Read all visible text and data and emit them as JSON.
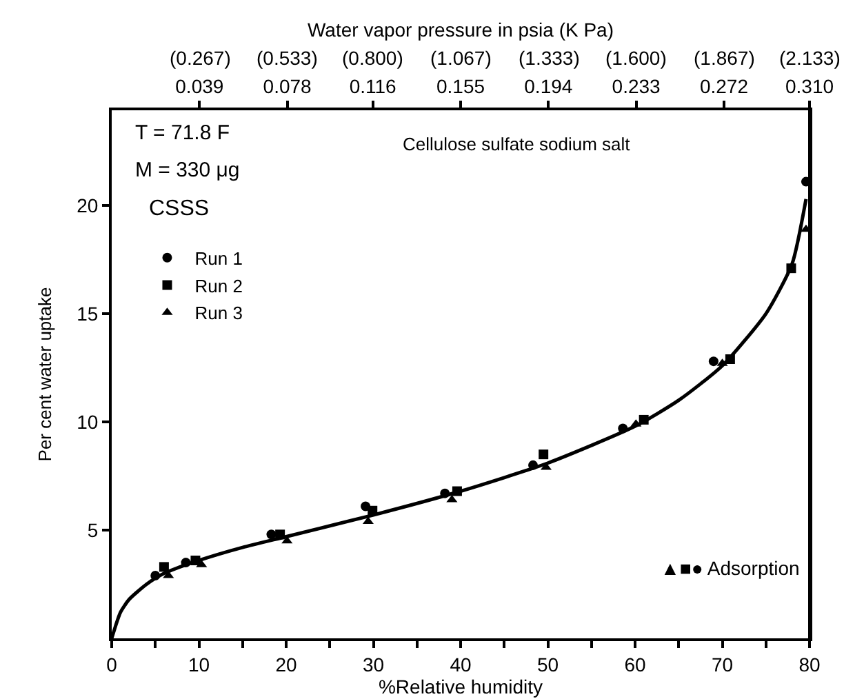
{
  "chart_data": {
    "type": "scatter",
    "xlabel": "%Relative humidity",
    "ylabel": "Per cent water uptake",
    "x2label": "Water vapor pressure in psia (K Pa)",
    "xlim": [
      0,
      80
    ],
    "ylim": [
      0,
      24.4
    ],
    "x2lim": [
      0,
      0.31
    ],
    "xticks": [
      0,
      {
        "value": 5,
        "label": null
      },
      10,
      {
        "value": 15,
        "label": null
      },
      20,
      {
        "value": 25,
        "label": null
      },
      30,
      {
        "value": 35,
        "label": null
      },
      40,
      {
        "value": 45,
        "label": null
      },
      50,
      {
        "value": 55,
        "label": null
      },
      60,
      {
        "value": 65,
        "label": null
      },
      70,
      {
        "value": 75,
        "label": null
      },
      80
    ],
    "yticks": [
      5,
      10,
      15,
      20
    ],
    "x2ticks": [
      0.039,
      0.078,
      0.116,
      0.155,
      0.194,
      0.233,
      0.272,
      {
        "value": 0.31,
        "label": "0.310"
      }
    ],
    "legend": "top left",
    "series": [
      {
        "name": "Run 1",
        "color": "#000000",
        "marker": "circle",
        "x": [
          5,
          8.5,
          18.3,
          29.1,
          38.2,
          48.3,
          58.6,
          69,
          79.6
        ],
        "values": [
          2.9,
          3.5,
          4.8,
          6.1,
          6.7,
          8.0,
          9.7,
          12.8,
          21.1
        ]
      },
      {
        "name": "Run 2",
        "color": "#000000",
        "marker": "square",
        "x": [
          6,
          9.6,
          19.3,
          29.9,
          39.6,
          49.5,
          61,
          70.9,
          77.9
        ],
        "values": [
          3.3,
          3.6,
          4.8,
          5.9,
          6.8,
          8.5,
          10.1,
          12.9,
          17.1
        ]
      },
      {
        "name": "Run 3",
        "color": "#000000",
        "marker": "triangle",
        "x": [
          6.5,
          10.3,
          20.1,
          29.4,
          39,
          49.8,
          60.1,
          70,
          79.6
        ],
        "values": [
          2.9,
          3.4,
          4.5,
          5.4,
          6.4,
          7.9,
          9.9,
          12.7,
          18.9
        ]
      },
      {
        "type": "line",
        "color": "#000000",
        "marker": "none",
        "line_style": "solid",
        "x": [
          0,
          1,
          2,
          4,
          6,
          10,
          15,
          20,
          30,
          40,
          50,
          60,
          65,
          70,
          75,
          78,
          79.6
        ],
        "values": [
          0,
          1.2,
          1.8,
          2.5,
          3.0,
          3.6,
          4.2,
          4.7,
          5.7,
          6.8,
          8.1,
          9.8,
          11.0,
          12.6,
          15.0,
          17.3,
          20.3
        ]
      }
    ],
    "annotations": [
      "T = 71.8 F",
      "M = 330 μg",
      "CSSS",
      "Cellulose sulfate sodium salt",
      "▲■● Adsorption",
      "(0.267)",
      "(0.533)",
      "(0.800)",
      "(1.067)",
      "(1.333)",
      "(1.600)",
      "(1.867)",
      "(2.133)"
    ]
  }
}
